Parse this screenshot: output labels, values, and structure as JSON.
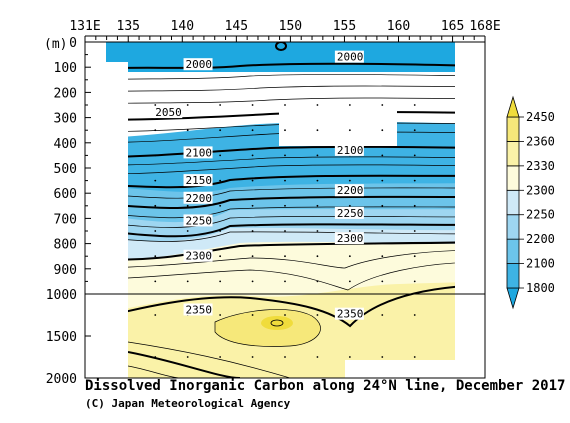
{
  "chart_data": {
    "type": "heatmap",
    "title": "Dissolved Inorganic Carbon along 24°N line, December 2017",
    "credit": "(C) Japan Meteorological Agency",
    "x_axis": {
      "ticks": [
        "131E",
        "135",
        "140",
        "145",
        "150",
        "155",
        "160",
        "165",
        "168E"
      ],
      "tick_values": [
        131,
        135,
        140,
        145,
        150,
        155,
        160,
        165,
        168
      ],
      "range": [
        131,
        168
      ]
    },
    "y_axis": {
      "unit_label": "(m)",
      "ticks": [
        "0",
        "100",
        "200",
        "300",
        "400",
        "500",
        "600",
        "700",
        "800",
        "900",
        "1000",
        "1500",
        "2000"
      ],
      "tick_values": [
        0,
        100,
        200,
        300,
        400,
        500,
        600,
        700,
        800,
        900,
        1000,
        1500,
        2000
      ],
      "range": [
        0,
        2000
      ],
      "scale_break_at": 1000
    },
    "colorbar": {
      "levels": [
        "1800",
        "2100",
        "2200",
        "2250",
        "2300",
        "2330",
        "2360",
        "2450"
      ],
      "colors": [
        "#1ea8e0",
        "#3eb3e4",
        "#6cc4ea",
        "#9ed6f1",
        "#cfe9f7",
        "#fdfbdc",
        "#faf2a8",
        "#f6e87a",
        "#f0dc3c"
      ]
    },
    "contour_labels": [
      {
        "text": "2000",
        "lon": 140.3,
        "depth": 100
      },
      {
        "text": "2000",
        "lon": 154.3,
        "depth": 70
      },
      {
        "text": "2050",
        "lon": 137.5,
        "depth": 290
      },
      {
        "text": "2100",
        "lon": 140.3,
        "depth": 450
      },
      {
        "text": "2100",
        "lon": 154.3,
        "depth": 440
      },
      {
        "text": "2150",
        "lon": 140.3,
        "depth": 560
      },
      {
        "text": "2200",
        "lon": 140.3,
        "depth": 630
      },
      {
        "text": "2200",
        "lon": 154.3,
        "depth": 600
      },
      {
        "text": "2250",
        "lon": 140.3,
        "depth": 720
      },
      {
        "text": "2250",
        "lon": 154.3,
        "depth": 690
      },
      {
        "text": "2300",
        "lon": 154.3,
        "depth": 790
      },
      {
        "text": "2300",
        "lon": 140.3,
        "depth": 860
      },
      {
        "text": "2350",
        "lon": 140.3,
        "depth": 1220
      },
      {
        "text": "2350",
        "lon": 154.3,
        "depth": 1270
      }
    ]
  }
}
